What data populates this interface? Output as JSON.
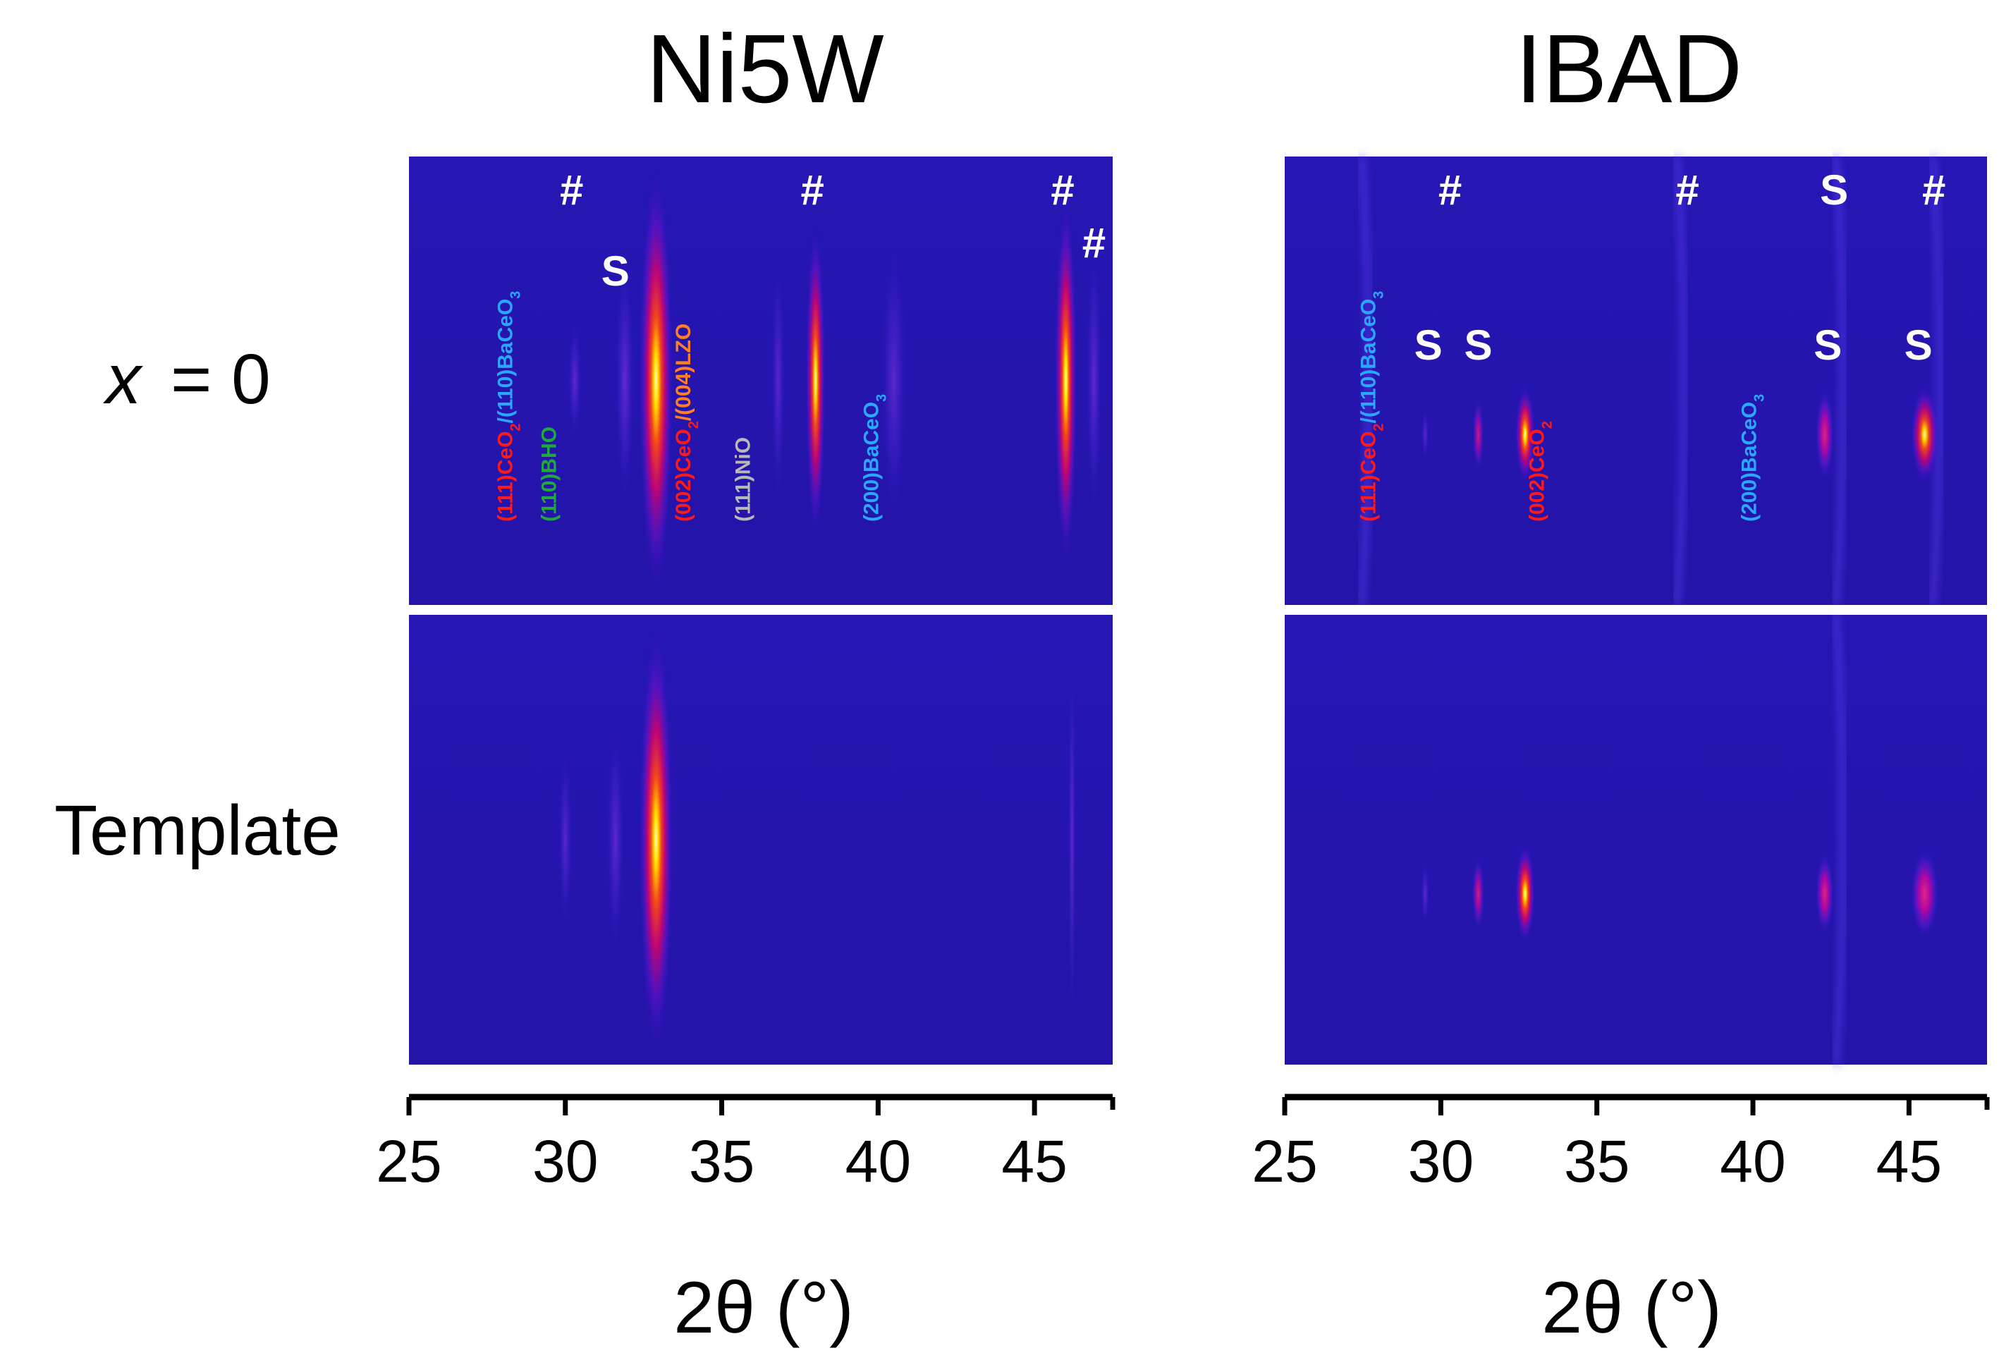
{
  "figure": {
    "columns": [
      "Ni5W",
      "IBAD"
    ],
    "rows": [
      "x = 0",
      "Template"
    ]
  },
  "chart_data": [
    {
      "type": "heatmap",
      "title": "Ni5W",
      "xlabel": "2θ (°)",
      "xlim": [
        25,
        47.5
      ],
      "xticks": [
        25,
        30,
        35,
        40,
        45
      ],
      "rows": [
        "x = 0",
        "Template"
      ],
      "peaks": {
        "x = 0": [
          {
            "x": 30.3,
            "intensity": 0.22,
            "width": 0.22,
            "height": 0.26
          },
          {
            "x": 31.9,
            "intensity": 0.3,
            "width": 0.3,
            "height": 0.55
          },
          {
            "x": 32.9,
            "intensity": 1.0,
            "width": 0.55,
            "height": 0.95
          },
          {
            "x": 36.8,
            "intensity": 0.12,
            "width": 0.22,
            "height": 0.55
          },
          {
            "x": 38.0,
            "intensity": 0.78,
            "width": 0.32,
            "height": 0.7
          },
          {
            "x": 40.5,
            "intensity": 0.14,
            "width": 0.4,
            "height": 0.62
          },
          {
            "x": 46.0,
            "intensity": 0.85,
            "width": 0.36,
            "height": 0.82
          },
          {
            "x": 46.9,
            "intensity": 0.22,
            "width": 0.25,
            "height": 0.6
          }
        ],
        "Template": [
          {
            "x": 30.0,
            "intensity": 0.1,
            "width": 0.22,
            "height": 0.4
          },
          {
            "x": 31.6,
            "intensity": 0.18,
            "width": 0.28,
            "height": 0.5
          },
          {
            "x": 32.9,
            "intensity": 1.0,
            "width": 0.55,
            "height": 0.95
          },
          {
            "x": 46.2,
            "intensity": 0.25,
            "width": 0.12,
            "height": 0.85
          }
        ]
      },
      "markers": [
        {
          "text": "#",
          "x": 30.2,
          "level": 1
        },
        {
          "text": "#",
          "x": 37.9,
          "level": 1
        },
        {
          "text": "#",
          "x": 45.9,
          "level": 1
        },
        {
          "text": "#",
          "x": 46.9,
          "level": 2
        },
        {
          "text": "S",
          "x": 31.6,
          "level": 3
        }
      ],
      "peak_labels": [
        {
          "x": 28.3,
          "parts": [
            {
              "text": "(111)CeO",
              "color": "#ff1a1a"
            },
            {
              "text": "2",
              "color": "#ff1a1a",
              "sub": true
            },
            {
              "text": "/(110)BaCeO",
              "color": "#2aa8ff"
            },
            {
              "text": "3",
              "color": "#2aa8ff",
              "sub": true
            }
          ]
        },
        {
          "x": 29.7,
          "parts": [
            {
              "text": "(110)BHO",
              "color": "#1faa3a"
            }
          ]
        },
        {
          "x": 34.0,
          "parts": [
            {
              "text": "(002)CeO",
              "color": "#ff1a1a"
            },
            {
              "text": "2",
              "color": "#ff1a1a",
              "sub": true
            },
            {
              "text": "/(004)LZO",
              "color": "#ff7f27"
            }
          ]
        },
        {
          "x": 35.9,
          "parts": [
            {
              "text": "(111)NiO",
              "color": "#b8b8b8"
            }
          ]
        },
        {
          "x": 40.0,
          "parts": [
            {
              "text": "(200)BaCeO",
              "color": "#2aa8ff"
            },
            {
              "text": "3",
              "color": "#2aa8ff",
              "sub": true
            }
          ]
        }
      ]
    },
    {
      "type": "heatmap",
      "title": "IBAD",
      "xlabel": "2θ (°)",
      "xlim": [
        25,
        47.5
      ],
      "xticks": [
        25,
        30,
        35,
        40,
        45
      ],
      "rows": [
        "x = 0",
        "Template"
      ],
      "peaks": {
        "x = 0": [
          {
            "x": 29.5,
            "intensity": 0.15,
            "width": 0.12,
            "height": 0.12
          },
          {
            "x": 31.2,
            "intensity": 0.38,
            "width": 0.18,
            "height": 0.16
          },
          {
            "x": 32.7,
            "intensity": 1.0,
            "width": 0.32,
            "height": 0.22
          },
          {
            "x": 42.3,
            "intensity": 0.62,
            "width": 0.3,
            "height": 0.2
          },
          {
            "x": 45.5,
            "intensity": 0.76,
            "width": 0.45,
            "height": 0.22
          }
        ],
        "Template": [
          {
            "x": 29.5,
            "intensity": 0.2,
            "width": 0.14,
            "height": 0.14
          },
          {
            "x": 31.2,
            "intensity": 0.45,
            "width": 0.2,
            "height": 0.16
          },
          {
            "x": 32.7,
            "intensity": 1.0,
            "width": 0.32,
            "height": 0.22
          },
          {
            "x": 42.3,
            "intensity": 0.62,
            "width": 0.3,
            "height": 0.18
          },
          {
            "x": 45.5,
            "intensity": 0.68,
            "width": 0.45,
            "height": 0.2
          }
        ]
      },
      "markers": [
        {
          "text": "#",
          "x": 30.3,
          "level": 1
        },
        {
          "text": "#",
          "x": 37.9,
          "level": 1
        },
        {
          "text": "S",
          "x": 42.6,
          "level": 1
        },
        {
          "text": "#",
          "x": 45.8,
          "level": 1
        },
        {
          "text": "S",
          "x": 29.6,
          "level": 4
        },
        {
          "text": "S",
          "x": 31.2,
          "level": 4
        },
        {
          "text": "S",
          "x": 42.4,
          "level": 4
        },
        {
          "text": "S",
          "x": 45.3,
          "level": 4
        }
      ],
      "peak_labels": [
        {
          "x": 27.9,
          "parts": [
            {
              "text": "(111)CeO",
              "color": "#ff1a1a"
            },
            {
              "text": "2",
              "color": "#ff1a1a",
              "sub": true
            },
            {
              "text": "/(110)BaCeO",
              "color": "#2aa8ff"
            },
            {
              "text": "3",
              "color": "#2aa8ff",
              "sub": true
            }
          ]
        },
        {
          "x": 33.3,
          "parts": [
            {
              "text": "(002)CeO",
              "color": "#ff1a1a"
            },
            {
              "text": "2",
              "color": "#ff1a1a",
              "sub": true
            }
          ]
        },
        {
          "x": 40.1,
          "parts": [
            {
              "text": "(200)BaCeO",
              "color": "#2aa8ff"
            },
            {
              "text": "3",
              "color": "#2aa8ff",
              "sub": true
            }
          ]
        }
      ]
    }
  ]
}
